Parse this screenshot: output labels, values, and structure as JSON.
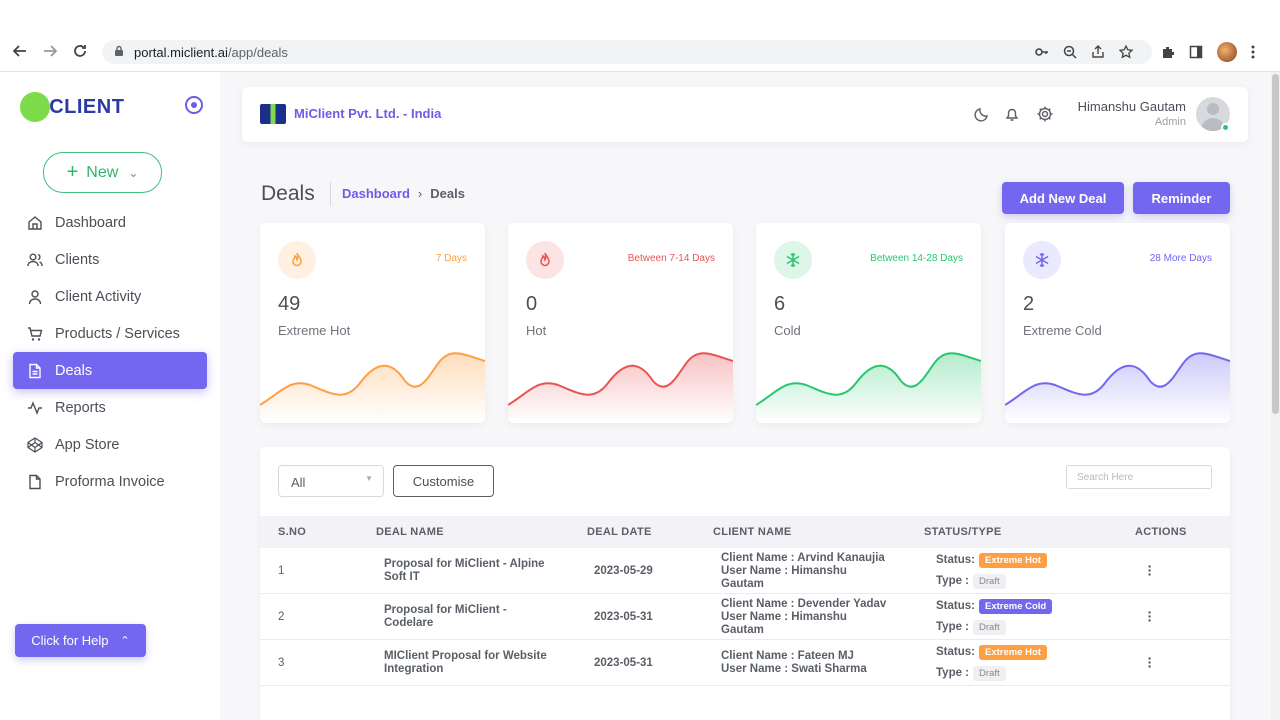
{
  "browser": {
    "url_host": "portal.miclient.ai",
    "url_path": "/app/deals"
  },
  "sidebar": {
    "logo_text": "MiCLIENT",
    "new_label": "New",
    "items": [
      {
        "label": "Dashboard",
        "icon": "home-icon"
      },
      {
        "label": "Clients",
        "icon": "users-icon"
      },
      {
        "label": "Client Activity",
        "icon": "user-icon"
      },
      {
        "label": "Products / Services",
        "icon": "cart-icon"
      },
      {
        "label": "Deals",
        "icon": "document-icon",
        "active": true
      },
      {
        "label": "Reports",
        "icon": "activity-icon"
      },
      {
        "label": "App Store",
        "icon": "codepen-icon"
      },
      {
        "label": "Proforma Invoice",
        "icon": "file-icon"
      }
    ],
    "help_label": "Click for Help"
  },
  "topbar": {
    "company": "MiClient Pvt. Ltd. - India",
    "user_name": "Himanshu Gautam",
    "user_role": "Admin"
  },
  "page": {
    "title": "Deals",
    "breadcrumb_link": "Dashboard",
    "breadcrumb_current": "Deals",
    "add_button": "Add New Deal",
    "reminder_button": "Reminder"
  },
  "stats": [
    {
      "range": "7 Days",
      "value": "49",
      "label": "Extreme Hot",
      "color": "#ff9f43",
      "icon": "fire-icon"
    },
    {
      "range": "Between 7-14 Days",
      "value": "0",
      "label": "Hot",
      "color": "#ea5455",
      "icon": "fire-icon"
    },
    {
      "range": "Between 14-28 Days",
      "value": "6",
      "label": "Cold",
      "color": "#28c76f",
      "icon": "snowflake-icon"
    },
    {
      "range": "28 More Days",
      "value": "2",
      "label": "Extreme Cold",
      "color": "#7367f0",
      "icon": "snowflake-icon"
    }
  ],
  "table": {
    "filter_value": "All",
    "customise_label": "Customise",
    "search_placeholder": "Search Here",
    "headers": [
      "S.NO",
      "DEAL NAME",
      "DEAL DATE",
      "CLIENT NAME",
      "STATUS/TYPE",
      "ACTIONS"
    ],
    "status_prefix": "Status:",
    "type_prefix": "Type :",
    "rows": [
      {
        "sno": "1",
        "deal_line1": "Proposal for MiClient - Alpine",
        "deal_line2": "Soft IT",
        "date": "2023-05-29",
        "client_line1": "Client Name : Arvind Kanaujia",
        "client_line2": "User Name : Himanshu",
        "client_line3": "Gautam",
        "status": "Extreme Hot",
        "type": "Draft"
      },
      {
        "sno": "2",
        "deal_line1": "Proposal for MiClient -",
        "deal_line2": "Codelare",
        "date": "2023-05-31",
        "client_line1": "Client Name : Devender Yadav",
        "client_line2": "User Name : Himanshu",
        "client_line3": "Gautam",
        "status": "Extreme Cold",
        "type": "Draft"
      },
      {
        "sno": "3",
        "deal_line1": "MIClient Proposal for Website",
        "deal_line2": "Integration",
        "date": "2023-05-31",
        "client_line1": "Client Name : Fateen MJ",
        "client_line2": "User Name : Swati Sharma",
        "client_line3": "",
        "status": "Extreme Hot",
        "type": "Draft"
      }
    ]
  }
}
